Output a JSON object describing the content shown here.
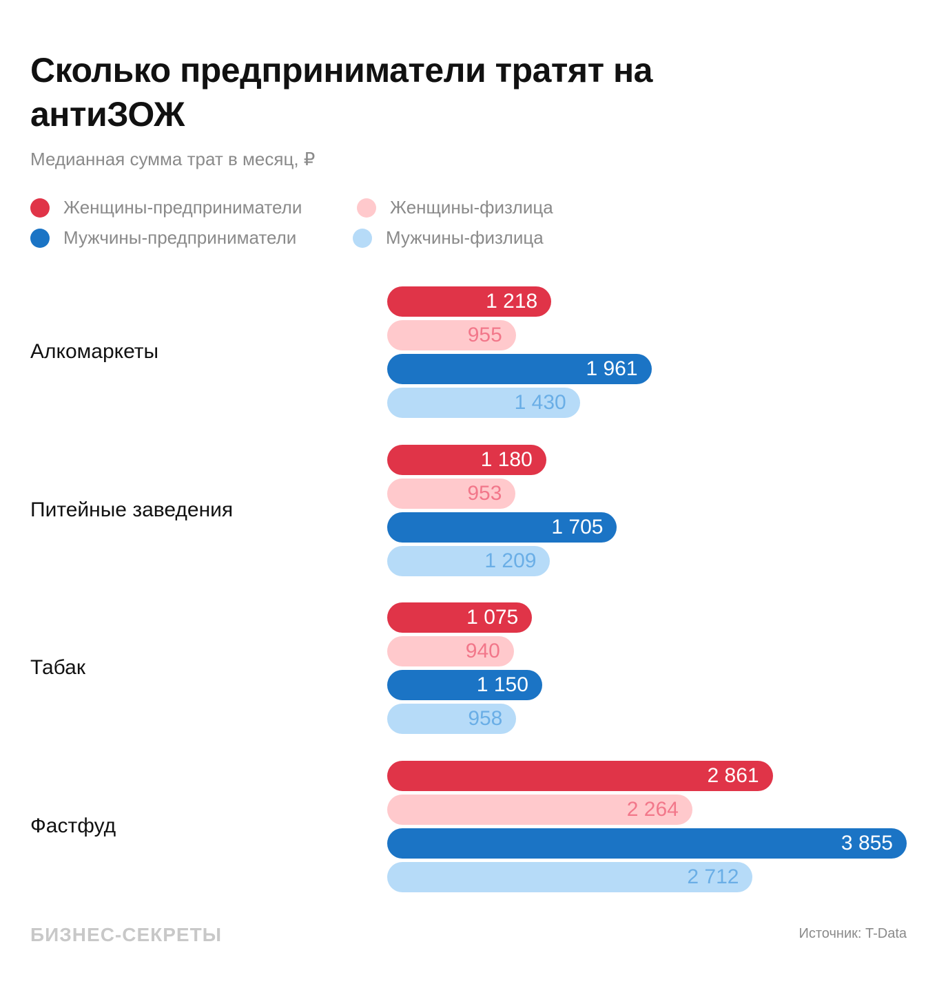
{
  "chart_data": {
    "type": "bar",
    "orientation": "horizontal",
    "title": "Сколько предприниматели тратят на антиЗОЖ",
    "subtitle": "Медианная сумма трат в месяц, ₽",
    "categories": [
      "Алкомаркеты",
      "Питейные заведения",
      "Табак",
      "Фастфуд"
    ],
    "series": [
      {
        "name": "Женщины-предприниматели",
        "color": "#e03448",
        "label_color": "#ffffff",
        "values": [
          1218,
          1180,
          1075,
          2861
        ]
      },
      {
        "name": "Женщины-физлица",
        "color": "#ffc9cc",
        "label_color": "#f2778a",
        "values": [
          955,
          953,
          940,
          2264
        ]
      },
      {
        "name": "Мужчины-предприниматели",
        "color": "#1b74c5",
        "label_color": "#ffffff",
        "values": [
          1961,
          1705,
          1150,
          3855
        ]
      },
      {
        "name": "Мужчины-физлица",
        "color": "#b6dbf8",
        "label_color": "#6aaee6",
        "values": [
          1430,
          1209,
          958,
          2712
        ]
      }
    ],
    "legend_placement": "top-left",
    "grid": false,
    "xlim": [
      0,
      3855
    ]
  },
  "footer": {
    "logo": "БИЗНЕС-СЕКРЕТЫ",
    "source": "Источник: T-Data"
  }
}
